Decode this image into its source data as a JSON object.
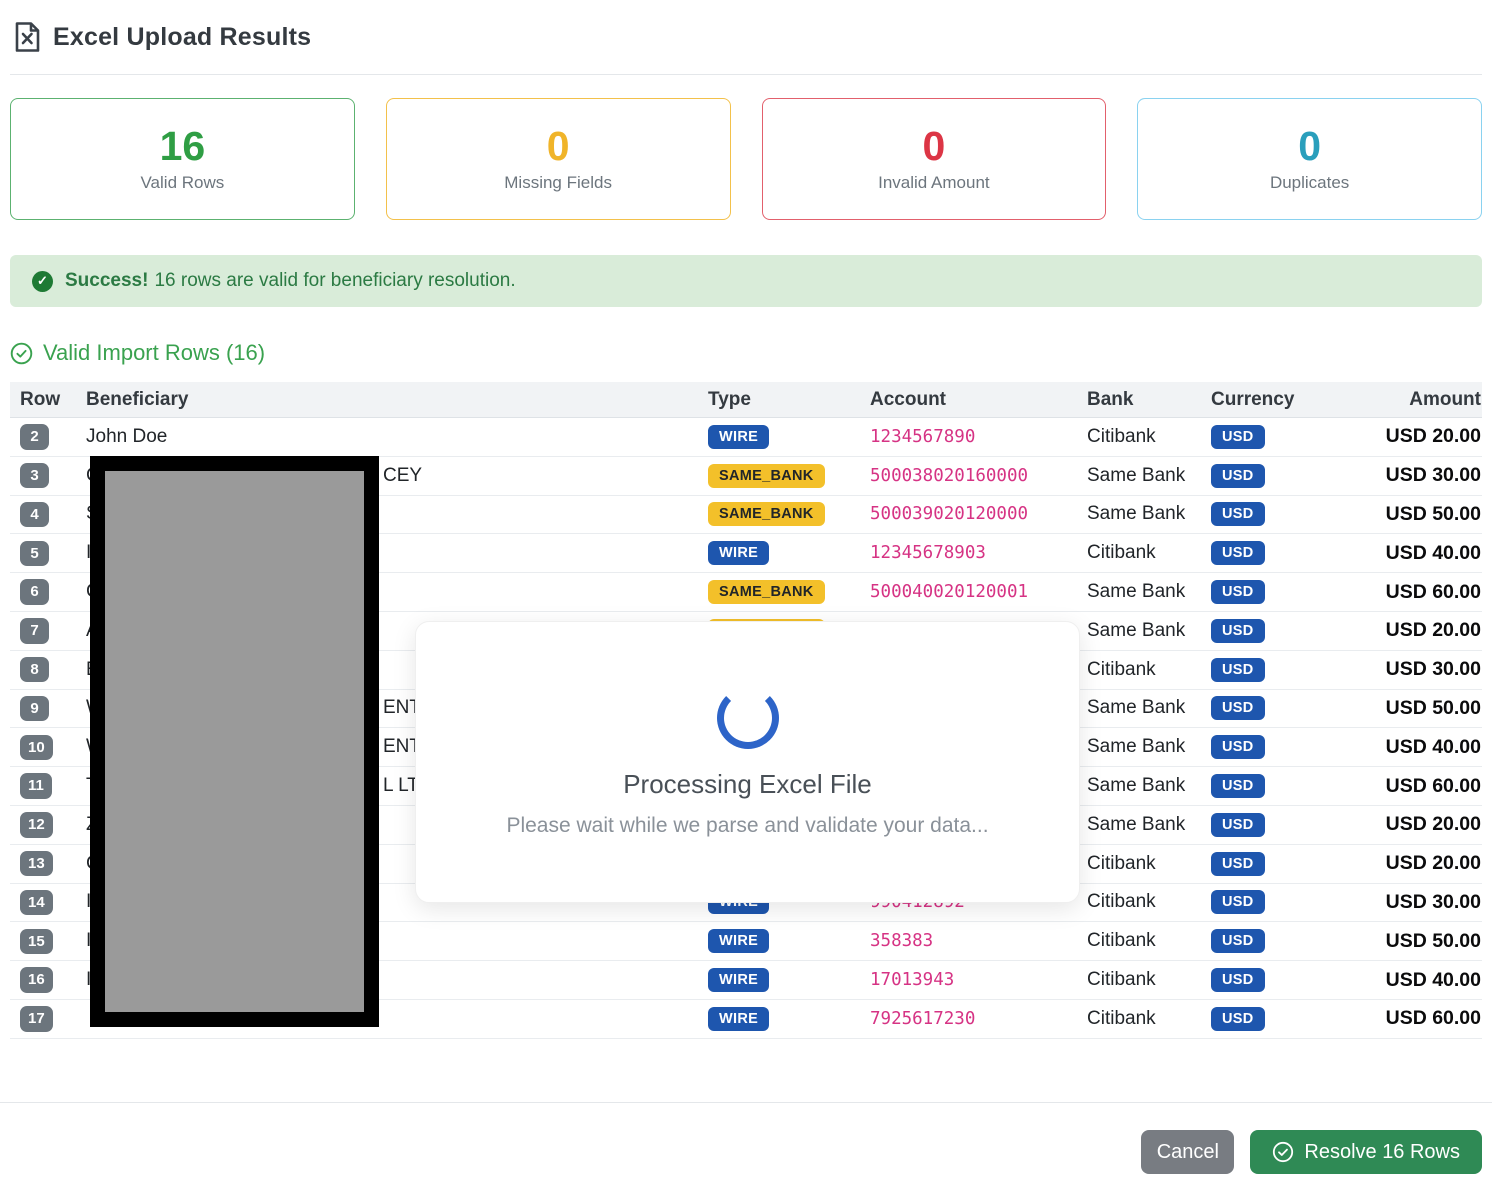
{
  "header": {
    "title": "Excel Upload Results"
  },
  "cards": [
    {
      "value": "16",
      "label": "Valid Rows",
      "num_color": "#2f9e44",
      "border_color": "#5cb270"
    },
    {
      "value": "0",
      "label": "Missing Fields",
      "num_color": "#f0b429",
      "border_color": "#f3c14b"
    },
    {
      "value": "0",
      "label": "Invalid Amount",
      "num_color": "#dc3545",
      "border_color": "#e2606c"
    },
    {
      "value": "0",
      "label": "Duplicates",
      "num_color": "#2a9fbc",
      "border_color": "#8ad2f0"
    }
  ],
  "banner": {
    "title": "Success!",
    "message": "16 rows are valid for beneficiary resolution."
  },
  "section": {
    "title": "Valid Import Rows (16)"
  },
  "table": {
    "columns": [
      "Row",
      "Beneficiary",
      "Type",
      "Account",
      "Bank",
      "Currency",
      "Amount"
    ],
    "rows": [
      {
        "num": "2",
        "beneficiary": "John Doe",
        "beneficiary_tail": "",
        "type": "WIRE",
        "account": "1234567890",
        "bank": "Citibank",
        "currency": "USD",
        "amount": "USD 20.00"
      },
      {
        "num": "3",
        "beneficiary": "C",
        "beneficiary_tail": "CEY",
        "type": "SAME_BANK",
        "account": "500038020160000",
        "bank": "Same Bank",
        "currency": "USD",
        "amount": "USD 30.00"
      },
      {
        "num": "4",
        "beneficiary": "S",
        "beneficiary_tail": "",
        "type": "SAME_BANK",
        "account": "500039020120000",
        "bank": "Same Bank",
        "currency": "USD",
        "amount": "USD 50.00"
      },
      {
        "num": "5",
        "beneficiary": "I",
        "beneficiary_tail": "",
        "type": "WIRE",
        "account": "12345678903",
        "bank": "Citibank",
        "currency": "USD",
        "amount": "USD 40.00"
      },
      {
        "num": "6",
        "beneficiary": "C",
        "beneficiary_tail": "",
        "type": "SAME_BANK",
        "account": "500040020120001",
        "bank": "Same Bank",
        "currency": "USD",
        "amount": "USD 60.00"
      },
      {
        "num": "7",
        "beneficiary": "A",
        "beneficiary_tail": "",
        "type": "SAME_BANK",
        "account": "",
        "bank": "Same Bank",
        "currency": "USD",
        "amount": "USD 20.00"
      },
      {
        "num": "8",
        "beneficiary": "E",
        "beneficiary_tail": "",
        "type": "",
        "account": "",
        "bank": "Citibank",
        "currency": "USD",
        "amount": "USD 30.00"
      },
      {
        "num": "9",
        "beneficiary": "W",
        "beneficiary_tail": "ENT",
        "type": "",
        "account": "",
        "bank": "Same Bank",
        "currency": "USD",
        "amount": "USD 50.00"
      },
      {
        "num": "10",
        "beneficiary": "W",
        "beneficiary_tail": "ENT",
        "type": "",
        "account": "",
        "bank": "Same Bank",
        "currency": "USD",
        "amount": "USD 40.00"
      },
      {
        "num": "11",
        "beneficiary": "T",
        "beneficiary_tail": "L LTD",
        "type": "",
        "account": "",
        "bank": "Same Bank",
        "currency": "USD",
        "amount": "USD 60.00"
      },
      {
        "num": "12",
        "beneficiary": "Z",
        "beneficiary_tail": "",
        "type": "",
        "account": "",
        "bank": "Same Bank",
        "currency": "USD",
        "amount": "USD 20.00"
      },
      {
        "num": "13",
        "beneficiary": "C",
        "beneficiary_tail": "",
        "type": "",
        "account": "",
        "bank": "Citibank",
        "currency": "USD",
        "amount": "USD 20.00"
      },
      {
        "num": "14",
        "beneficiary": "I",
        "beneficiary_tail": "",
        "type": "WIRE",
        "account": "990412892",
        "bank": "Citibank",
        "currency": "USD",
        "amount": "USD 30.00"
      },
      {
        "num": "15",
        "beneficiary": "I",
        "beneficiary_tail": "",
        "type": "WIRE",
        "account": "358383",
        "bank": "Citibank",
        "currency": "USD",
        "amount": "USD 50.00"
      },
      {
        "num": "16",
        "beneficiary": "I",
        "beneficiary_tail": "",
        "type": "WIRE",
        "account": "17013943",
        "bank": "Citibank",
        "currency": "USD",
        "amount": "USD 40.00"
      },
      {
        "num": "17",
        "beneficiary": "",
        "beneficiary_tail": "",
        "type": "WIRE",
        "account": "7925617230",
        "bank": "Citibank",
        "currency": "USD",
        "amount": "USD 60.00"
      }
    ]
  },
  "modal": {
    "title": "Processing Excel File",
    "subtitle": "Please wait while we parse and validate your data..."
  },
  "footer": {
    "cancel_label": "Cancel",
    "resolve_label": "Resolve 16 Rows"
  },
  "colors": {
    "accent_green": "#2f9e44",
    "accent_yellow": "#f0b429",
    "accent_red": "#dc3545",
    "accent_teal": "#2a9fbc",
    "badge_blue": "#1e56ae",
    "badge_yellow": "#f3c02a",
    "account_pink": "#d63384",
    "banner_bg": "#d9ecd9",
    "spinner_blue": "#2d64c8",
    "cancel_gray": "#787c82",
    "resolve_green": "#2f8a55"
  }
}
